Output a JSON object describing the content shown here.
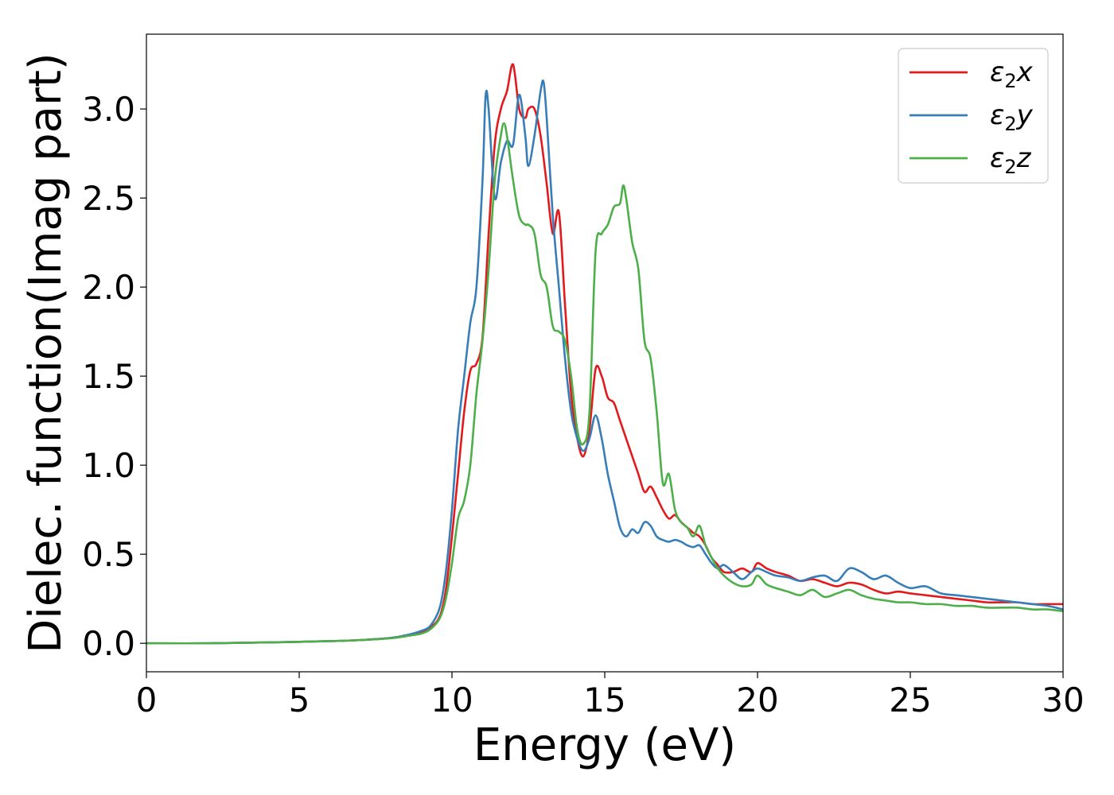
{
  "chart_data": {
    "type": "line",
    "xlabel": "Energy (eV)",
    "ylabel": "Dielec. function(Imag part)",
    "xlim": [
      0,
      30
    ],
    "ylim": [
      -0.16,
      3.42
    ],
    "x_ticks": [
      0,
      5,
      10,
      15,
      20,
      25,
      30
    ],
    "x_tick_labels": [
      "0",
      "5",
      "10",
      "15",
      "20",
      "25",
      "30"
    ],
    "y_ticks": [
      0.0,
      0.5,
      1.0,
      1.5,
      2.0,
      2.5,
      3.0
    ],
    "y_tick_labels": [
      "0.0",
      "0.5",
      "1.0",
      "1.5",
      "2.0",
      "2.5",
      "3.0"
    ],
    "grid": false,
    "legend_position": "top-right",
    "series": [
      {
        "name": "ε2x",
        "legend": {
          "main": "ε",
          "sub": "2",
          "suffix": "x"
        },
        "color": "#e31a1c",
        "x": [
          0,
          2,
          4,
          6,
          7,
          8,
          8.5,
          9,
          9.3,
          9.6,
          9.8,
          10.0,
          10.2,
          10.4,
          10.6,
          10.8,
          11.0,
          11.2,
          11.4,
          11.6,
          11.8,
          12.0,
          12.2,
          12.4,
          12.5,
          12.7,
          12.9,
          13.1,
          13.3,
          13.5,
          13.7,
          13.9,
          14.1,
          14.3,
          14.5,
          14.7,
          14.9,
          15.1,
          15.3,
          15.5,
          15.7,
          15.9,
          16.1,
          16.3,
          16.5,
          16.7,
          16.9,
          17.1,
          17.3,
          17.5,
          17.7,
          17.9,
          18.1,
          18.3,
          18.5,
          18.7,
          18.9,
          19.2,
          19.5,
          19.8,
          20.0,
          20.3,
          20.6,
          21.0,
          21.4,
          21.8,
          22.2,
          22.6,
          23.0,
          23.4,
          23.8,
          24.2,
          24.6,
          25.0,
          25.5,
          26.0,
          26.5,
          27.0,
          27.5,
          28.0,
          28.5,
          29.0,
          29.5,
          30.0
        ],
        "y": [
          0.0,
          0.0,
          0.005,
          0.012,
          0.018,
          0.03,
          0.045,
          0.065,
          0.09,
          0.15,
          0.3,
          0.6,
          0.95,
          1.3,
          1.53,
          1.57,
          1.72,
          2.3,
          2.8,
          3.0,
          3.1,
          3.25,
          3.0,
          2.95,
          3.0,
          3.0,
          2.85,
          2.58,
          2.3,
          2.42,
          1.9,
          1.4,
          1.15,
          1.05,
          1.2,
          1.54,
          1.5,
          1.38,
          1.35,
          1.25,
          1.15,
          1.05,
          0.95,
          0.85,
          0.88,
          0.82,
          0.75,
          0.7,
          0.72,
          0.68,
          0.65,
          0.62,
          0.6,
          0.55,
          0.48,
          0.44,
          0.4,
          0.4,
          0.42,
          0.4,
          0.45,
          0.42,
          0.4,
          0.38,
          0.35,
          0.36,
          0.34,
          0.32,
          0.34,
          0.33,
          0.3,
          0.28,
          0.29,
          0.28,
          0.27,
          0.26,
          0.25,
          0.24,
          0.23,
          0.23,
          0.23,
          0.22,
          0.22,
          0.22
        ]
      },
      {
        "name": "ε2y",
        "legend": {
          "main": "ε",
          "sub": "2",
          "suffix": "y"
        },
        "color": "#377eb8",
        "x": [
          0,
          2,
          4,
          6,
          7,
          8,
          8.5,
          9,
          9.3,
          9.6,
          9.8,
          10.0,
          10.2,
          10.4,
          10.6,
          10.8,
          11.0,
          11.1,
          11.2,
          11.4,
          11.6,
          11.8,
          12.0,
          12.2,
          12.4,
          12.5,
          12.7,
          12.9,
          13.0,
          13.1,
          13.3,
          13.5,
          13.7,
          13.9,
          14.1,
          14.3,
          14.5,
          14.7,
          14.9,
          15.1,
          15.3,
          15.5,
          15.7,
          15.9,
          16.1,
          16.3,
          16.5,
          16.7,
          16.9,
          17.1,
          17.3,
          17.5,
          17.7,
          17.9,
          18.1,
          18.3,
          18.5,
          18.7,
          18.9,
          19.2,
          19.5,
          19.8,
          20.0,
          20.3,
          20.6,
          21.0,
          21.4,
          21.8,
          22.2,
          22.6,
          23.0,
          23.4,
          23.8,
          24.2,
          24.6,
          25.0,
          25.5,
          26.0,
          26.5,
          27.0,
          27.5,
          28.0,
          28.5,
          29.0,
          29.5,
          30.0
        ],
        "y": [
          0.0,
          0.0,
          0.005,
          0.012,
          0.018,
          0.03,
          0.045,
          0.07,
          0.1,
          0.2,
          0.4,
          0.75,
          1.2,
          1.5,
          1.8,
          2.0,
          2.6,
          3.07,
          3.0,
          2.5,
          2.7,
          2.82,
          2.8,
          3.08,
          2.85,
          2.68,
          2.85,
          3.1,
          3.15,
          2.95,
          2.4,
          2.0,
          1.6,
          1.3,
          1.15,
          1.08,
          1.15,
          1.28,
          1.15,
          0.95,
          0.8,
          0.65,
          0.6,
          0.64,
          0.62,
          0.68,
          0.66,
          0.6,
          0.58,
          0.57,
          0.58,
          0.57,
          0.55,
          0.54,
          0.55,
          0.5,
          0.45,
          0.42,
          0.44,
          0.4,
          0.36,
          0.4,
          0.42,
          0.4,
          0.38,
          0.37,
          0.35,
          0.37,
          0.38,
          0.35,
          0.42,
          0.4,
          0.36,
          0.38,
          0.34,
          0.31,
          0.32,
          0.28,
          0.27,
          0.26,
          0.25,
          0.24,
          0.23,
          0.22,
          0.21,
          0.19
        ]
      },
      {
        "name": "ε2z",
        "legend": {
          "main": "ε",
          "sub": "2",
          "suffix": "z"
        },
        "color": "#4daf4a",
        "x": [
          0,
          2,
          4,
          6,
          7,
          8,
          8.5,
          9,
          9.3,
          9.6,
          9.8,
          10.0,
          10.2,
          10.4,
          10.6,
          10.8,
          11.0,
          11.2,
          11.4,
          11.6,
          11.7,
          11.8,
          12.0,
          12.2,
          12.4,
          12.5,
          12.7,
          12.9,
          13.1,
          13.3,
          13.5,
          13.7,
          13.9,
          14.1,
          14.3,
          14.5,
          14.7,
          14.9,
          15.1,
          15.3,
          15.5,
          15.6,
          15.7,
          15.9,
          16.1,
          16.3,
          16.5,
          16.7,
          16.9,
          17.1,
          17.3,
          17.5,
          17.7,
          17.9,
          18.1,
          18.3,
          18.5,
          18.7,
          18.9,
          19.2,
          19.5,
          19.8,
          20.0,
          20.3,
          20.6,
          21.0,
          21.4,
          21.8,
          22.2,
          22.6,
          23.0,
          23.4,
          23.8,
          24.2,
          24.6,
          25.0,
          25.5,
          26.0,
          26.5,
          27.0,
          27.5,
          28.0,
          28.5,
          29.0,
          29.5,
          30.0
        ],
        "y": [
          0.0,
          0.0,
          0.005,
          0.012,
          0.018,
          0.028,
          0.04,
          0.055,
          0.08,
          0.14,
          0.25,
          0.45,
          0.7,
          0.8,
          1.0,
          1.4,
          1.7,
          2.1,
          2.6,
          2.85,
          2.92,
          2.85,
          2.6,
          2.4,
          2.35,
          2.35,
          2.3,
          2.07,
          2.0,
          1.78,
          1.75,
          1.7,
          1.5,
          1.2,
          1.12,
          1.3,
          2.2,
          2.3,
          2.35,
          2.45,
          2.47,
          2.57,
          2.5,
          2.25,
          2.1,
          1.7,
          1.6,
          1.3,
          0.9,
          0.95,
          0.75,
          0.68,
          0.65,
          0.6,
          0.66,
          0.55,
          0.48,
          0.42,
          0.38,
          0.34,
          0.32,
          0.33,
          0.38,
          0.33,
          0.31,
          0.29,
          0.27,
          0.3,
          0.26,
          0.28,
          0.3,
          0.27,
          0.25,
          0.24,
          0.23,
          0.23,
          0.22,
          0.22,
          0.21,
          0.21,
          0.2,
          0.2,
          0.2,
          0.19,
          0.19,
          0.18
        ]
      }
    ]
  }
}
